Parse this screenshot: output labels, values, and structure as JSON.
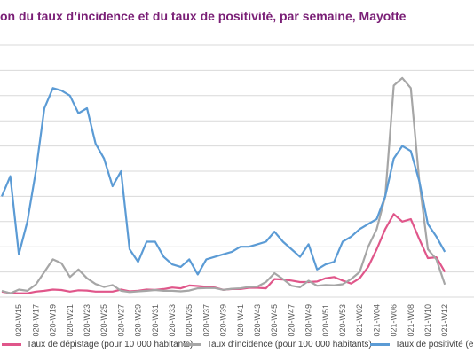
{
  "title": "on du taux d’incidence et du taux de positivité, par semaine, Mayotte",
  "colors": {
    "depistage": "#e0568a",
    "incidence": "#a6a6a6",
    "positivite": "#5b9bd5",
    "grid": "#d9d9d9",
    "title": "#7a1f76"
  },
  "chart_data": {
    "type": "line",
    "grid": true,
    "legend_position": "bottom",
    "tick_labels": [
      "2020-W15",
      "2020-W17",
      "2020-W19",
      "2020-W21",
      "2020-W23",
      "2020-W25",
      "2020-W27",
      "2020-W29",
      "2020-W31",
      "2020-W33",
      "2020-W35",
      "2020-W37",
      "2020-W39",
      "2020-W41",
      "2020-W43",
      "2020-W45",
      "2020-W47",
      "2020-W49",
      "2020-W51",
      "2020-W53",
      "2021-W02",
      "2021-W04",
      "2021-W06",
      "2021-W08",
      "2021-W10",
      "2021-W12"
    ],
    "x": [
      "2020-W13",
      "2020-W14",
      "2020-W15",
      "2020-W16",
      "2020-W17",
      "2020-W18",
      "2020-W19",
      "2020-W20",
      "2020-W21",
      "2020-W22",
      "2020-W23",
      "2020-W24",
      "2020-W25",
      "2020-W26",
      "2020-W27",
      "2020-W28",
      "2020-W29",
      "2020-W30",
      "2020-W31",
      "2020-W32",
      "2020-W33",
      "2020-W34",
      "2020-W35",
      "2020-W36",
      "2020-W37",
      "2020-W38",
      "2020-W39",
      "2020-W40",
      "2020-W41",
      "2020-W42",
      "2020-W43",
      "2020-W44",
      "2020-W45",
      "2020-W46",
      "2020-W47",
      "2020-W48",
      "2020-W49",
      "2020-W50",
      "2020-W51",
      "2020-W52",
      "2020-W53",
      "2021-W01",
      "2021-W02",
      "2021-W03",
      "2021-W04",
      "2021-W05",
      "2021-W06",
      "2021-W07",
      "2021-W08",
      "2021-W09",
      "2021-W10",
      "2021-W11",
      "2021-W12"
    ],
    "series": [
      {
        "name": "Taux de dépistage (pour 10 000 habitants)",
        "color": "#e0568a",
        "values": [
          2.2,
          1.6,
          1.5,
          1.5,
          2.2,
          2.5,
          3,
          2.8,
          2.2,
          2.7,
          2.6,
          2.2,
          2.2,
          2.2,
          3,
          2.3,
          2.5,
          3,
          2.9,
          3.2,
          3.8,
          3.5,
          4.6,
          4.4,
          4.1,
          3.8,
          2.9,
          3.2,
          3.2,
          3.7,
          3.7,
          3.5,
          7.2,
          7,
          6.6,
          6,
          6,
          6.2,
          7.5,
          8,
          6.6,
          5.4,
          7.5,
          12,
          19,
          27,
          33,
          30,
          31,
          23,
          15.5,
          15.8,
          10
        ]
      },
      {
        "name": "Taux d’incidence (pour 100 000 habitants)",
        "color": "#a6a6a6",
        "values": [
          2.5,
          1.5,
          3,
          2.5,
          5,
          10,
          15,
          13.5,
          8,
          11,
          7.5,
          5.2,
          4,
          4.8,
          2.5,
          2,
          2.3,
          2.5,
          2.8,
          2.5,
          2.5,
          2.3,
          2.6,
          3.5,
          3.6,
          3.6,
          2.9,
          3.3,
          3.5,
          4,
          4.2,
          6,
          9.5,
          7.2,
          4.5,
          3.9,
          6.5,
          4.5,
          4.8,
          4.7,
          5.1,
          7.2,
          10,
          20,
          27,
          40,
          84,
          87,
          83,
          46,
          19,
          15,
          5
        ]
      },
      {
        "name": "Taux de positivité (en %)",
        "color": "#5b9bd5",
        "values": [
          40,
          48,
          17,
          30,
          50,
          75,
          83,
          82,
          80,
          73,
          75,
          61,
          55,
          44,
          50,
          19,
          14,
          22,
          22,
          16,
          13,
          12,
          15,
          9,
          15,
          16,
          17,
          18,
          20,
          20,
          21,
          22,
          26,
          22,
          19,
          16,
          21,
          11,
          13,
          14,
          22,
          24,
          27,
          29,
          31,
          40,
          55,
          60,
          58,
          46,
          29,
          24,
          18
        ]
      }
    ]
  },
  "legend": {
    "depistage_label": "Taux de dépistage (pour 10 000 habitants)",
    "incidence_label": "Taux d’incidence (pour 100 000 habitants)",
    "positivite_label": "Taux de positivité (e"
  }
}
